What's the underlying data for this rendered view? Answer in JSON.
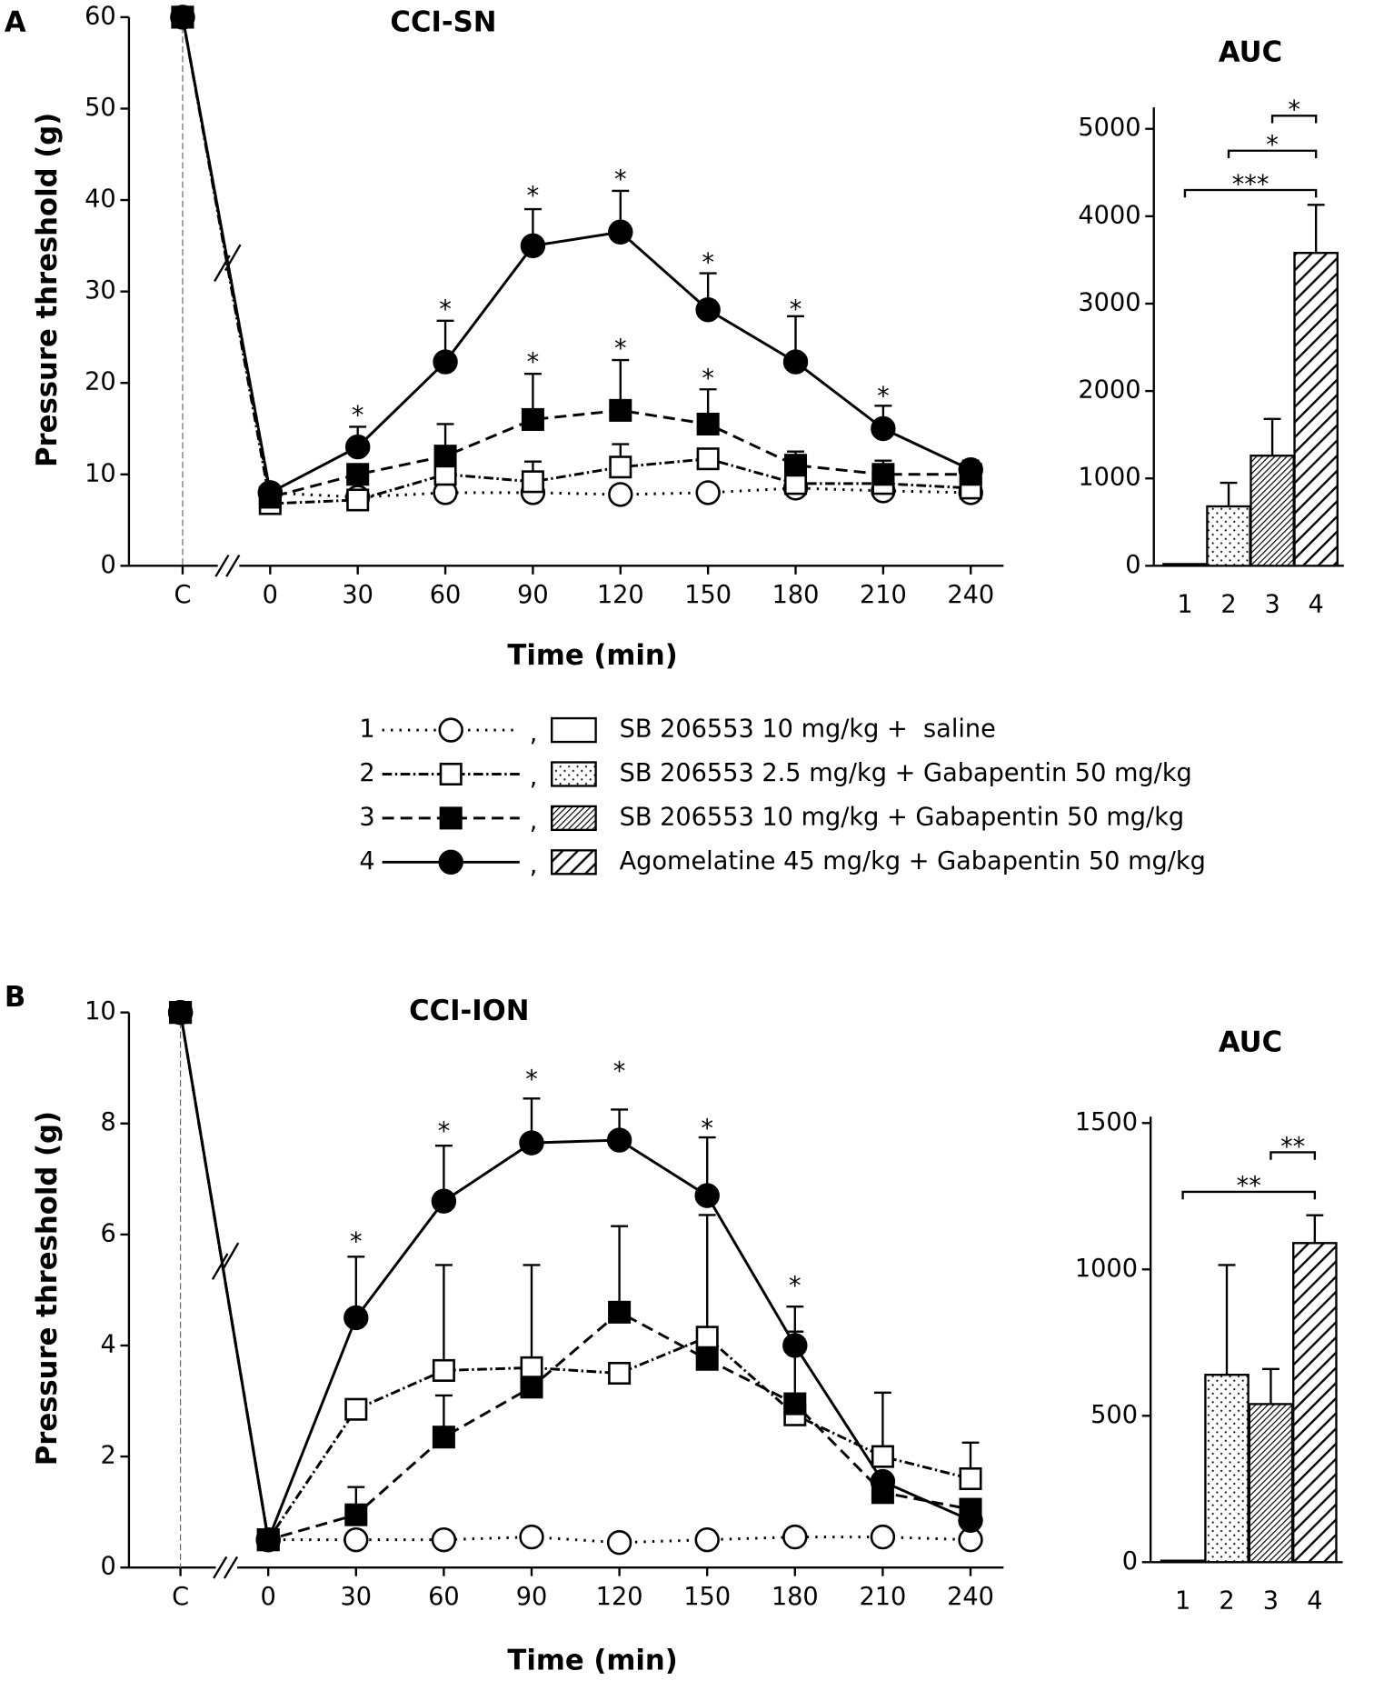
{
  "chart_data": [
    {
      "type": "line",
      "label": "A",
      "title": "CCI-SN",
      "xlabel": "Time (min)",
      "ylabel": "Pressure threshold (g)",
      "categories": [
        "C",
        "0",
        "30",
        "60",
        "90",
        "120",
        "150",
        "180",
        "210",
        "240"
      ],
      "ylim": [
        0,
        60
      ],
      "yticks": [
        0,
        10,
        20,
        30,
        40,
        50,
        60
      ],
      "series": [
        {
          "name": "1",
          "color": "#000000",
          "marker": "circle-open",
          "dash": "dotted",
          "values": [
            60,
            8,
            7.5,
            8,
            8,
            7.8,
            8,
            8.5,
            8.2,
            8
          ],
          "errors": [
            null,
            null,
            null,
            null,
            null,
            null,
            null,
            null,
            null,
            null
          ]
        },
        {
          "name": "2",
          "color": "#000000",
          "marker": "square-open",
          "dash": "dash-dot",
          "values": [
            60,
            6.8,
            7.2,
            10,
            9.2,
            10.8,
            11.7,
            9,
            9,
            8.5
          ],
          "errors": [
            null,
            0.5,
            null,
            1.5,
            2.2,
            2.5,
            1,
            1,
            1,
            0.5
          ]
        },
        {
          "name": "3",
          "color": "#000000",
          "marker": "square-filled",
          "dash": "dashed",
          "values": [
            60,
            7.5,
            10,
            12,
            16,
            17,
            15.5,
            11,
            10,
            10
          ],
          "errors": [
            null,
            null,
            1,
            3.5,
            5,
            5.5,
            3.8,
            1.5,
            1.5,
            1
          ]
        },
        {
          "name": "4",
          "color": "#000000",
          "marker": "circle-filled",
          "dash": "solid",
          "values": [
            60,
            8,
            13,
            22.3,
            35,
            36.5,
            28,
            22.3,
            15,
            10.5
          ],
          "errors": [
            null,
            null,
            2.2,
            4.5,
            4,
            4.5,
            4,
            5,
            2.5,
            1
          ]
        }
      ],
      "annotations": [
        {
          "text": "*",
          "x": "30",
          "y": 17
        },
        {
          "text": "*",
          "x": "60",
          "y": 28.6
        },
        {
          "text": "*",
          "x": "90",
          "y": 41
        },
        {
          "text": "*",
          "x": "120",
          "y": 42.8
        },
        {
          "text": "*",
          "x": "150",
          "y": 33.7
        },
        {
          "text": "*",
          "x": "180",
          "y": 28.6
        },
        {
          "text": "*",
          "x": "210",
          "y": 19.1
        },
        {
          "text": "*",
          "x": "90",
          "y": 22.8
        },
        {
          "text": "*",
          "x": "120",
          "y": 24.3
        },
        {
          "text": "*",
          "x": "150",
          "y": 21
        }
      ]
    },
    {
      "type": "bar",
      "title": "AUC",
      "categories": [
        "1",
        "2",
        "3",
        "4"
      ],
      "values": [
        20,
        680,
        1260,
        3580
      ],
      "errors": [
        null,
        270,
        420,
        550
      ],
      "patterns": [
        "none",
        "dots",
        "hatch-fine",
        "hatch-wide"
      ],
      "ylim": [
        0,
        5000
      ],
      "yticks": [
        0,
        1000,
        2000,
        3000,
        4000,
        5000
      ],
      "brackets": [
        {
          "from": "3",
          "to": "4",
          "text": "*",
          "y": 5150
        },
        {
          "from": "2",
          "to": "4",
          "text": "*",
          "y": 4750
        },
        {
          "from": "1",
          "to": "4",
          "text": "***",
          "y": 4300
        }
      ]
    },
    {
      "type": "line",
      "label": "B",
      "title": "CCI-ION",
      "xlabel": "Time (min)",
      "ylabel": "Pressure threshold (g)",
      "categories": [
        "C",
        "0",
        "30",
        "60",
        "90",
        "120",
        "150",
        "180",
        "210",
        "240"
      ],
      "ylim": [
        0,
        10
      ],
      "yticks": [
        0,
        2,
        4,
        6,
        8,
        10
      ],
      "series": [
        {
          "color": "#000000",
          "marker": "circle-open",
          "dash": "dotted",
          "values": [
            10,
            0.5,
            0.5,
            0.5,
            0.55,
            0.45,
            0.5,
            0.55,
            0.55,
            0.5
          ],
          "errors": [
            null,
            null,
            null,
            null,
            null,
            null,
            null,
            null,
            null,
            null
          ]
        },
        {
          "color": "#000000",
          "marker": "square-open",
          "dash": "dash-dot",
          "values": [
            10,
            0.5,
            2.85,
            3.55,
            3.6,
            3.5,
            4.15,
            2.75,
            2,
            1.6
          ],
          "errors": [
            null,
            null,
            null,
            1.9,
            1.85,
            null,
            2.2,
            1.5,
            1.15,
            0.65
          ]
        },
        {
          "color": "#000000",
          "marker": "square-filled",
          "dash": "dashed",
          "values": [
            10,
            0.5,
            0.95,
            2.35,
            3.25,
            4.6,
            3.75,
            2.95,
            1.35,
            1.05
          ],
          "errors": [
            null,
            null,
            0.5,
            0.75,
            null,
            1.55,
            null,
            null,
            null,
            null
          ]
        },
        {
          "color": "#000000",
          "marker": "circle-filled",
          "dash": "solid",
          "values": [
            10,
            0.5,
            4.5,
            6.6,
            7.65,
            7.7,
            6.7,
            4,
            1.55,
            0.85
          ],
          "errors": [
            null,
            null,
            1.1,
            1,
            0.8,
            0.55,
            1.05,
            0.7,
            null,
            null
          ]
        }
      ],
      "annotations": [
        {
          "text": "*",
          "x": "30",
          "y": 5.96
        },
        {
          "text": "*",
          "x": "60",
          "y": 7.95
        },
        {
          "text": "*",
          "x": "90",
          "y": 8.88
        },
        {
          "text": "*",
          "x": "120",
          "y": 9.03
        },
        {
          "text": "*",
          "x": "150",
          "y": 8
        },
        {
          "text": "*",
          "x": "180",
          "y": 5.16
        }
      ]
    },
    {
      "type": "bar",
      "title": "AUC",
      "categories": [
        "1",
        "2",
        "3",
        "4"
      ],
      "values": [
        5,
        640,
        540,
        1090
      ],
      "errors": [
        null,
        375,
        120,
        95
      ],
      "patterns": [
        "none",
        "dots",
        "hatch-fine",
        "hatch-wide"
      ],
      "ylim": [
        0,
        1500
      ],
      "yticks": [
        0,
        500,
        1000,
        1500
      ],
      "brackets": [
        {
          "from": "3",
          "to": "4",
          "text": "**",
          "y": 1400
        },
        {
          "from": "1",
          "to": "4",
          "text": "**",
          "y": 1265
        }
      ]
    }
  ],
  "legend": {
    "separator": ",",
    "entries": [
      "SB 206553 10 mg/kg +  saline",
      "SB 206553 2.5 mg/kg + Gabapentin 50 mg/kg",
      "SB 206553 10 mg/kg + Gabapentin 50 mg/kg",
      "Agomelatine 45 mg/kg + Gabapentin 50 mg/kg"
    ]
  }
}
